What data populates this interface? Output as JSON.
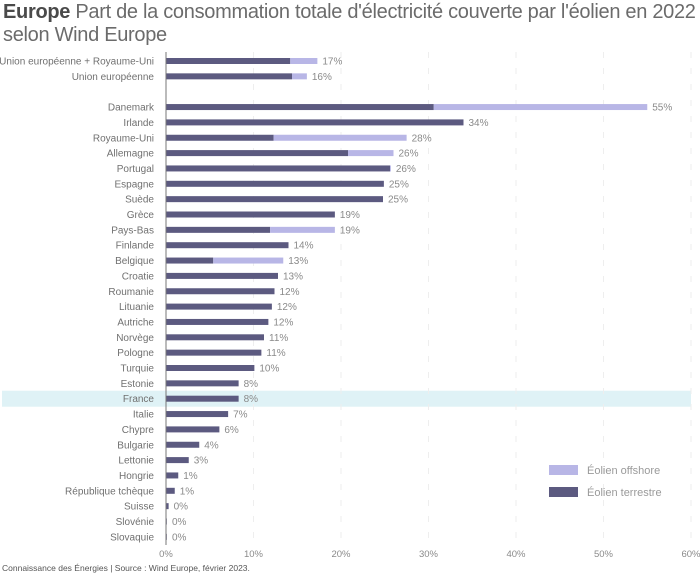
{
  "title": {
    "strong": "Europe",
    "rest": " Part de la consommation totale d'électricité couverte par l'éolien en 2022 selon Wind Europe"
  },
  "footer": "Connaissance des Énergies | Source : Wind Europe, février 2023.",
  "colors": {
    "onshore": "#5c5a80",
    "offshore": "#b8b6e6",
    "highlight": "#dff2f6",
    "axis": "#777777",
    "grid": "#eeeeee"
  },
  "chart_data": {
    "type": "bar",
    "orientation": "horizontal",
    "stacked": true,
    "title": "Europe Part de la consommation totale d'électricité couverte par l'éolien en 2022 selon Wind Europe",
    "xlabel": "",
    "ylabel": "",
    "xlim": [
      0,
      60
    ],
    "xticks": [
      "0%",
      "10%",
      "20%",
      "30%",
      "40%",
      "50%",
      "60%"
    ],
    "grid": true,
    "legend_position": "bottom-right",
    "highlighted_category": "France",
    "gap_after_index": 1,
    "categories": [
      "Union européenne + Royaume-Uni",
      "Union européenne",
      "Danemark",
      "Irlande",
      "Royaume-Uni",
      "Allemagne",
      "Portugal",
      "Espagne",
      "Suède",
      "Grèce",
      "Pays-Bas",
      "Finlande",
      "Belgique",
      "Croatie",
      "Roumanie",
      "Lituanie",
      "Autriche",
      "Norvège",
      "Pologne",
      "Turquie",
      "Estonie",
      "France",
      "Italie",
      "Chypre",
      "Bulgarie",
      "Lettonie",
      "Hongrie",
      "République tchèque",
      "Suisse",
      "Slovénie",
      "Slovaquie"
    ],
    "series": [
      {
        "name": "Éolien terrestre",
        "color": "#5c5a80",
        "values": [
          14.2,
          14.4,
          30.6,
          34.0,
          12.3,
          20.8,
          25.6,
          24.9,
          24.8,
          19.3,
          11.9,
          14.0,
          5.4,
          12.8,
          12.4,
          12.1,
          11.7,
          11.2,
          10.9,
          10.1,
          8.3,
          8.3,
          7.1,
          6.1,
          3.8,
          2.6,
          1.4,
          1.0,
          0.3,
          0.05,
          0.05
        ]
      },
      {
        "name": "Éolien offshore",
        "color": "#b8b6e6",
        "values": [
          3.1,
          1.7,
          24.4,
          0.0,
          15.2,
          5.2,
          0.1,
          0.0,
          0.0,
          0.0,
          7.4,
          0.0,
          8.0,
          0.0,
          0.0,
          0.0,
          0.0,
          0.0,
          0.0,
          0.0,
          0.0,
          0.0,
          0.0,
          0.0,
          0.0,
          0.0,
          0.0,
          0.0,
          0.0,
          0.0,
          0.0
        ]
      }
    ],
    "data_labels": [
      "17%",
      "16%",
      "55%",
      "34%",
      "28%",
      "26%",
      "26%",
      "25%",
      "25%",
      "19%",
      "19%",
      "14%",
      "13%",
      "13%",
      "12%",
      "12%",
      "12%",
      "11%",
      "11%",
      "10%",
      "8%",
      "8%",
      "7%",
      "6%",
      "4%",
      "3%",
      "1%",
      "1%",
      "0%",
      "0%",
      "0%"
    ],
    "legend": [
      "Éolien offshore",
      "Éolien terrestre"
    ]
  }
}
